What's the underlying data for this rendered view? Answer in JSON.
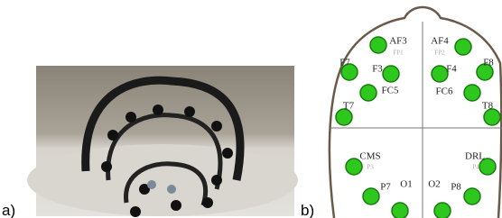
{
  "figure": {
    "panel_labels": [
      "a)",
      "b)"
    ],
    "electrodes": [
      {
        "label": "AF3",
        "sublabel": "FP1"
      },
      {
        "label": "AF4",
        "sublabel": "FP2"
      },
      {
        "label": "F7"
      },
      {
        "label": "F3"
      },
      {
        "label": "F4"
      },
      {
        "label": "F8"
      },
      {
        "label": "FC5"
      },
      {
        "label": "FC6"
      },
      {
        "label": "T7"
      },
      {
        "label": "T8"
      },
      {
        "label": "CMS",
        "sublabel": "P3"
      },
      {
        "label": "DRL",
        "sublabel": "P4"
      },
      {
        "label": "P7"
      },
      {
        "label": "P8"
      },
      {
        "label": "O1"
      },
      {
        "label": "O2"
      }
    ]
  }
}
